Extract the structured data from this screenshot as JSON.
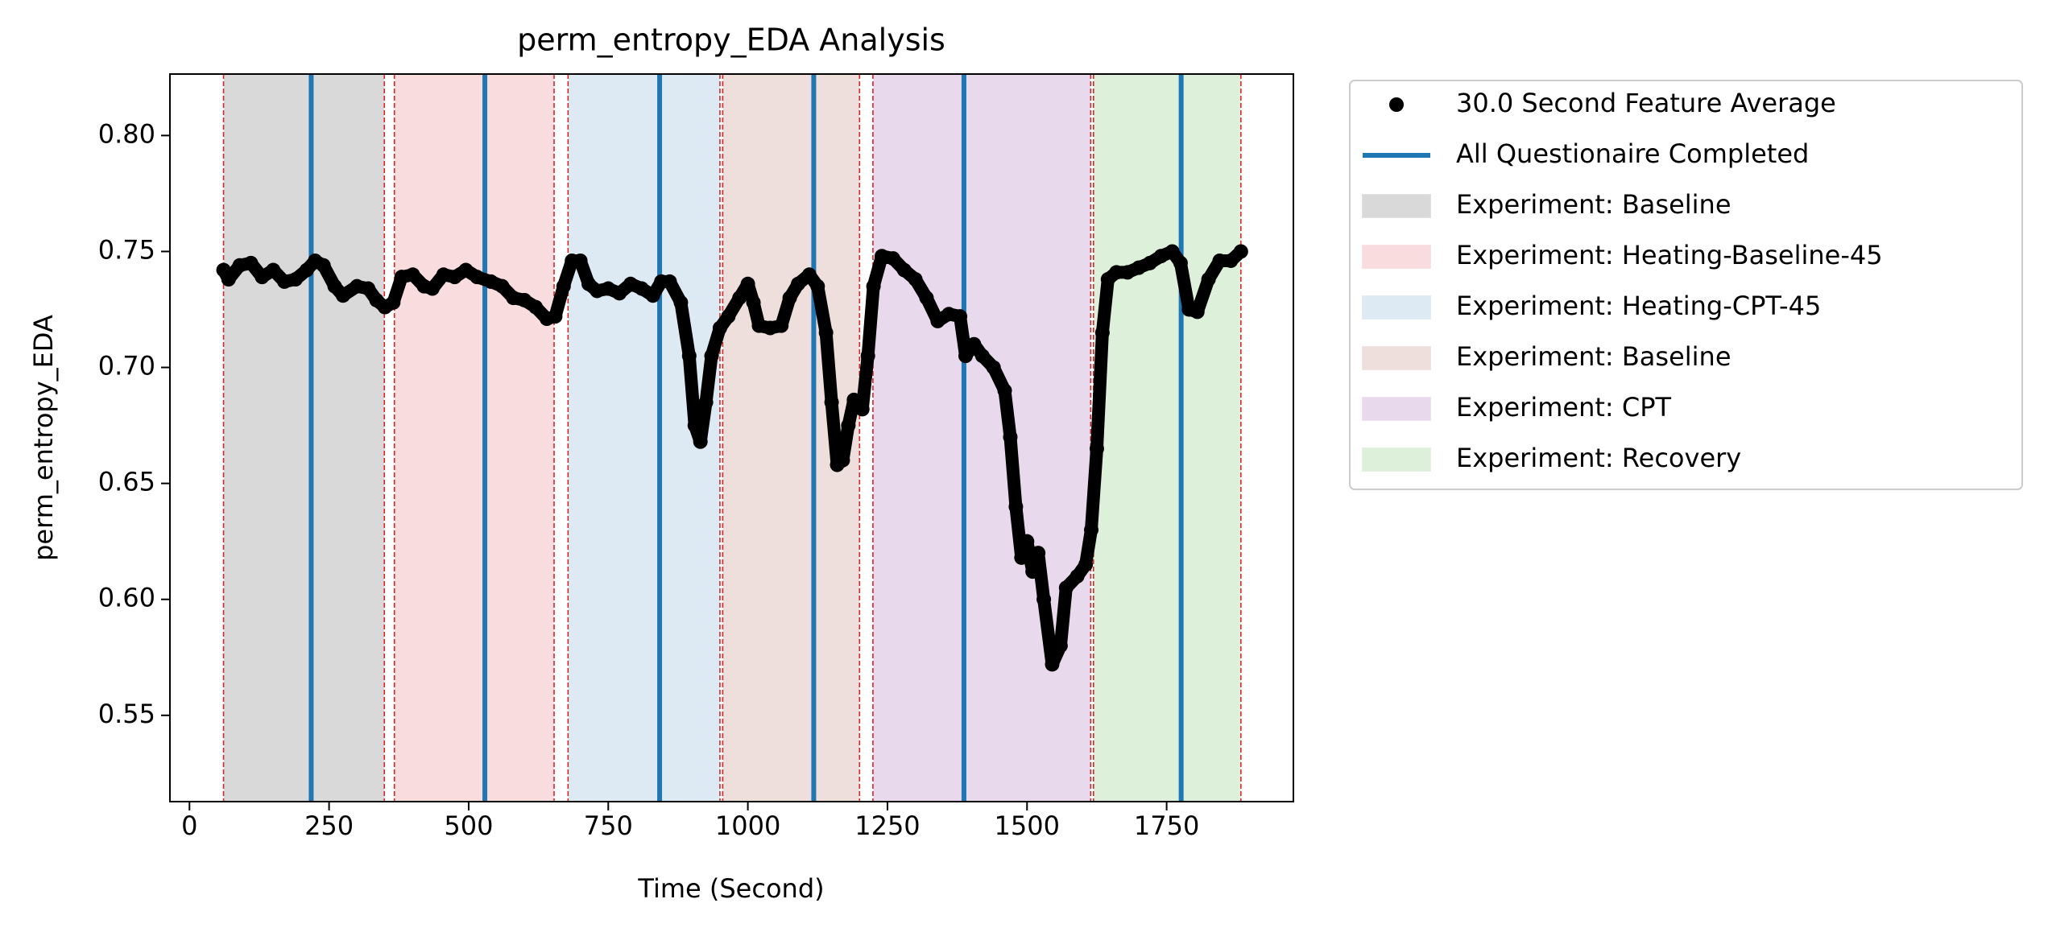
{
  "chart_data": {
    "type": "scatter",
    "title": "perm_entropy_EDA Analysis",
    "x_label": "Time (Second)",
    "y_label": "perm_entropy_EDA",
    "xlim": [
      -35,
      1977
    ],
    "ylim": [
      0.5128,
      0.8265
    ],
    "xticks": [
      0,
      250,
      500,
      750,
      1000,
      1250,
      1500,
      1750
    ],
    "yticks": [
      0.55,
      {
        "value": 0.6,
        "label": "0.60"
      },
      0.65,
      {
        "value": 0.7,
        "label": "0.70"
      },
      0.75,
      {
        "value": 0.8,
        "label": "0.80"
      }
    ],
    "series": [
      {
        "name": "30.0 Second Feature Average",
        "color": "#000000",
        "x": [
          61,
          70,
          90,
          110,
          130,
          150,
          170,
          190,
          210,
          225,
          240,
          260,
          275,
          300,
          320,
          335,
          350,
          365,
          380,
          400,
          420,
          435,
          455,
          475,
          495,
          515,
          540,
          560,
          580,
          600,
          620,
          640,
          655,
          670,
          685,
          700,
          715,
          730,
          750,
          770,
          790,
          810,
          830,
          845,
          860,
          880,
          895,
          905,
          915,
          925,
          935,
          950,
          965,
          985,
          1000,
          1010,
          1020,
          1040,
          1060,
          1075,
          1090,
          1110,
          1125,
          1140,
          1150,
          1160,
          1170,
          1180,
          1190,
          1205,
          1215,
          1225,
          1240,
          1260,
          1280,
          1300,
          1320,
          1340,
          1360,
          1380,
          1390,
          1405,
          1420,
          1440,
          1460,
          1470,
          1480,
          1490,
          1500,
          1510,
          1520,
          1530,
          1545,
          1560,
          1570,
          1590,
          1605,
          1615,
          1625,
          1635,
          1645,
          1660,
          1680,
          1700,
          1720,
          1740,
          1760,
          1775,
          1790,
          1805,
          1825,
          1845,
          1865,
          1883
        ],
        "values": [
          0.742,
          0.738,
          0.744,
          0.745,
          0.739,
          0.742,
          0.737,
          0.738,
          0.742,
          0.746,
          0.744,
          0.735,
          0.731,
          0.735,
          0.734,
          0.729,
          0.726,
          0.728,
          0.739,
          0.74,
          0.735,
          0.734,
          0.74,
          0.739,
          0.742,
          0.739,
          0.737,
          0.735,
          0.73,
          0.729,
          0.726,
          0.721,
          0.722,
          0.735,
          0.746,
          0.746,
          0.736,
          0.733,
          0.734,
          0.732,
          0.736,
          0.734,
          0.731,
          0.737,
          0.737,
          0.728,
          0.705,
          0.675,
          0.668,
          0.685,
          0.705,
          0.717,
          0.722,
          0.73,
          0.736,
          0.728,
          0.718,
          0.717,
          0.718,
          0.73,
          0.736,
          0.74,
          0.735,
          0.715,
          0.685,
          0.658,
          0.66,
          0.675,
          0.686,
          0.682,
          0.705,
          0.735,
          0.748,
          0.747,
          0.742,
          0.738,
          0.73,
          0.72,
          0.723,
          0.722,
          0.705,
          0.71,
          0.705,
          0.7,
          0.69,
          0.67,
          0.64,
          0.618,
          0.625,
          0.612,
          0.62,
          0.6,
          0.572,
          0.58,
          0.605,
          0.61,
          0.615,
          0.63,
          0.665,
          0.715,
          0.738,
          0.741,
          0.741,
          0.743,
          0.745,
          0.748,
          0.75,
          0.745,
          0.725,
          0.724,
          0.738,
          0.746,
          0.746,
          0.75
        ]
      }
    ],
    "vlines": {
      "name": "All Questionaire Completed",
      "color": "#1f77b4",
      "x": [
        218,
        529,
        842,
        1118,
        1387,
        1776
      ]
    },
    "spans": [
      {
        "name": "Experiment: Baseline",
        "color": "#d9d9d9",
        "start": 61,
        "end": 349
      },
      {
        "name": "Experiment: Heating-Baseline-45",
        "color": "#f8dcde",
        "start": 367,
        "end": 653
      },
      {
        "name": "Experiment: Heating-CPT-45",
        "color": "#dde9f3",
        "start": 678,
        "end": 950
      },
      {
        "name": "Experiment: Baseline",
        "color": "#eedfdd",
        "start": 955,
        "end": 1200
      },
      {
        "name": "Experiment: CPT",
        "color": "#e9d9ec",
        "start": 1224,
        "end": 1614
      },
      {
        "name": "Experiment: Recovery",
        "color": "#ddf0da",
        "start": 1619,
        "end": 1883
      }
    ],
    "span_edge_color": "#d62728"
  }
}
